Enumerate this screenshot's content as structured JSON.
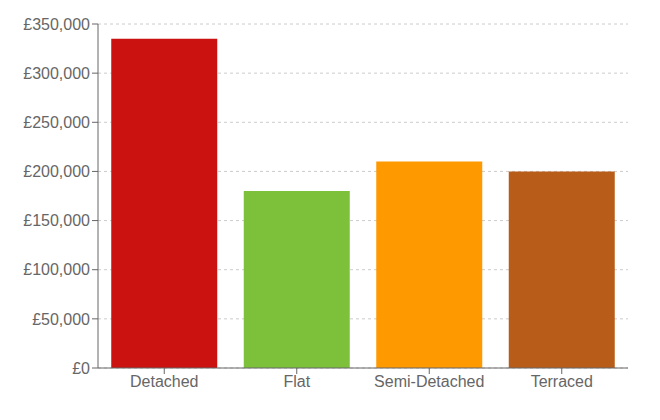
{
  "chart_data": {
    "type": "bar",
    "categories": [
      "Detached",
      "Flat",
      "Semi-Detached",
      "Terraced"
    ],
    "values": [
      335000,
      180000,
      210000,
      200000
    ],
    "colors": [
      "#cc1111",
      "#7dc13a",
      "#ff9900",
      "#b85c1a"
    ],
    "ylim": [
      0,
      350000
    ],
    "yticks": [
      {
        "value": 0,
        "label": "£0"
      },
      {
        "value": 50000,
        "label": "£50,000"
      },
      {
        "value": 100000,
        "label": "£100,000"
      },
      {
        "value": 150000,
        "label": "£150,000"
      },
      {
        "value": 200000,
        "label": "£200,000"
      },
      {
        "value": 250000,
        "label": "£250,000"
      },
      {
        "value": 300000,
        "label": "£300,000"
      },
      {
        "value": 350000,
        "label": "£350,000"
      }
    ],
    "grid": true
  }
}
